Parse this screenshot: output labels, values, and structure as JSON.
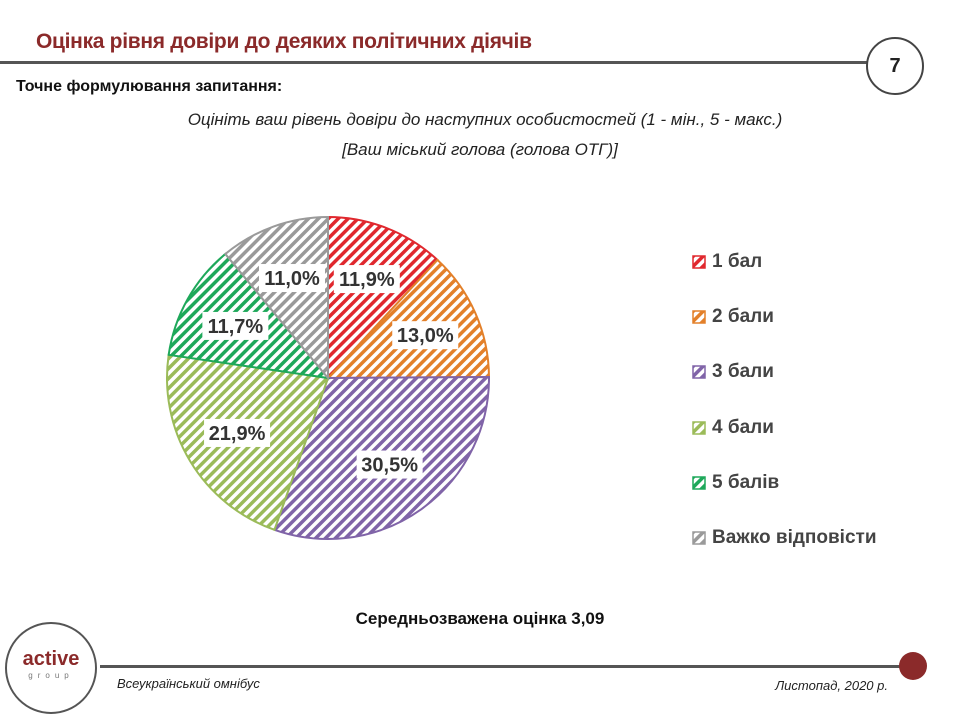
{
  "header": {
    "title": "Оцінка рівня довіри до деяких політичних діячів",
    "page_number": "7"
  },
  "question": {
    "label": "Точне формулювання запитання:",
    "text": "Оцініть ваш рівень довіри до наступних особистостей (1 - мін., 5 - макс.)",
    "subject": "[Ваш міський голова (голова ОТГ)]"
  },
  "chart_data": {
    "type": "pie",
    "start": "top, clockwise",
    "categories": [
      "1 бал",
      "2 бали",
      "3 бали",
      "4 бали",
      "5 балів",
      "Важко відповісти"
    ],
    "values": [
      11.9,
      13.0,
      30.5,
      21.9,
      11.7,
      11.0
    ],
    "labels": [
      "11,9%",
      "13,0%",
      "30,5%",
      "21,9%",
      "11,7%",
      "11,0%"
    ],
    "colors": [
      "#e0282e",
      "#e3802a",
      "#8064a8",
      "#9bbb59",
      "#1ea85a",
      "#9a9a9a"
    ],
    "fill": "diagonal hatch",
    "legend": "right"
  },
  "summary": "Середньозважена оцінка 3,09",
  "footer": {
    "logo_main": "active",
    "logo_sub": "group",
    "left": "Всеукраїнський омнібус",
    "right": "Листопад, 2020 р."
  }
}
